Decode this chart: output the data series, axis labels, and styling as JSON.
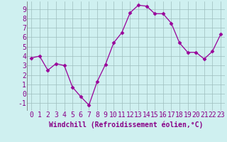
{
  "x": [
    0,
    1,
    2,
    3,
    4,
    5,
    6,
    7,
    8,
    9,
    10,
    11,
    12,
    13,
    14,
    15,
    16,
    17,
    18,
    19,
    20,
    21,
    22,
    23
  ],
  "y": [
    3.8,
    4.0,
    2.5,
    3.2,
    3.0,
    0.7,
    -0.3,
    -1.2,
    1.3,
    3.1,
    5.4,
    6.5,
    8.6,
    9.4,
    9.3,
    8.5,
    8.5,
    7.5,
    5.4,
    4.4,
    4.4,
    3.7,
    4.5,
    6.3
  ],
  "line_color": "#990099",
  "marker": "D",
  "marker_size": 2.5,
  "bg_color": "#cff0f0",
  "grid_color": "#9dbdbd",
  "xlabel": "Windchill (Refroidissement éolien,°C)",
  "xlabel_color": "#880088",
  "xlabel_fontsize": 7,
  "tick_color": "#880088",
  "tick_fontsize": 7,
  "ylim": [
    -1.8,
    9.8
  ],
  "xlim": [
    -0.5,
    23.5
  ],
  "yticks": [
    -1,
    0,
    1,
    2,
    3,
    4,
    5,
    6,
    7,
    8,
    9
  ],
  "xticks": [
    0,
    1,
    2,
    3,
    4,
    5,
    6,
    7,
    8,
    9,
    10,
    11,
    12,
    13,
    14,
    15,
    16,
    17,
    18,
    19,
    20,
    21,
    22,
    23
  ]
}
